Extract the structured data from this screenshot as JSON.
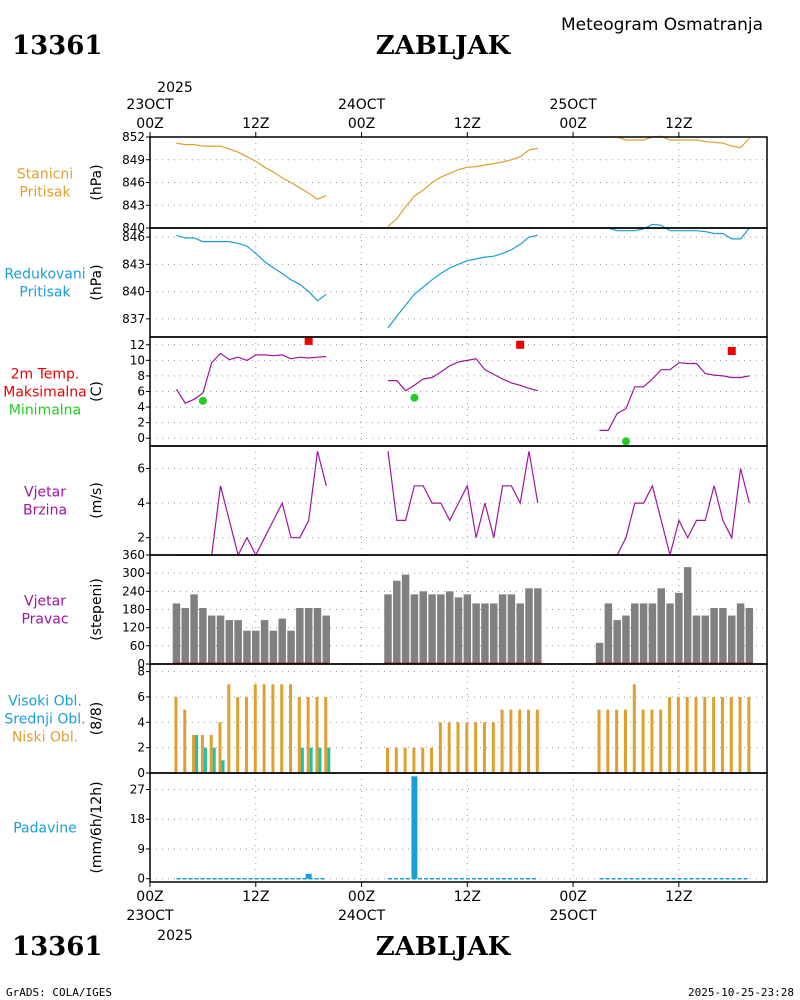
{
  "header": {
    "station_id": "13361",
    "station_name": "ZABLJAK",
    "title": "Meteogram Osmatranja"
  },
  "footer": {
    "station_id": "13361",
    "station_name": "ZABLJAK",
    "credit": "GrADS: COLA/IGES",
    "timestamp": "2025-10-25-23:28"
  },
  "time_axis": {
    "top_year": "2025",
    "bottom_year": "2025",
    "ticks": [
      {
        "h": 0,
        "lines": [
          "00Z",
          "23OCT"
        ]
      },
      {
        "h": 12,
        "lines": [
          "12Z"
        ]
      },
      {
        "h": 24,
        "lines": [
          "00Z",
          "24OCT"
        ]
      },
      {
        "h": 36,
        "lines": [
          "12Z"
        ]
      },
      {
        "h": 48,
        "lines": [
          "00Z",
          "25OCT"
        ]
      },
      {
        "h": 60,
        "lines": [
          "12Z"
        ]
      }
    ]
  },
  "colors": {
    "station_pressure": "#e0a030",
    "reduced_pressure": "#1aa0d8",
    "temperature": "#a0149f",
    "tmax": "#ee0000",
    "tmin": "#22cc22",
    "wind": "#a0149f",
    "wind_dir_bars": "#808080",
    "high_cloud": "#1aa0d8",
    "mid_cloud": "#20c0a0",
    "low_cloud": "#e0a030",
    "precip": "#1aa0d8"
  },
  "panels": {
    "station_pressure": {
      "label1": "Stanicni",
      "label2": "Pritisak",
      "unit": "(hPa)"
    },
    "reduced_pressure": {
      "label1": "Redukovani",
      "label2": "Pritisak",
      "unit": "(hPa)"
    },
    "temperature": {
      "label1": "2m Temp.",
      "label2": "Maksimalna",
      "label3": "Minimalna",
      "unit": "(C)"
    },
    "wind_speed": {
      "label1": "Vjetar",
      "label2": "Brzina",
      "unit": "(m/s)"
    },
    "wind_dir": {
      "label1": "Vjetar",
      "label2": "Pravac",
      "unit": "(stepeni)"
    },
    "clouds": {
      "label1": "Visoki Obl.",
      "label2": "Srednji Obl.",
      "label3": "Niski Obl.",
      "unit": "(8/8)"
    },
    "precip": {
      "label1": "Padavine",
      "unit": "(mm/6h/12h)"
    }
  },
  "chart_data": [
    {
      "type": "line",
      "id": "station_pressure",
      "title": "Stanicni Pritisak",
      "ylabel": "(hPa)",
      "ylim": [
        840,
        852
      ],
      "yticks": [
        840,
        843,
        846,
        849,
        852
      ],
      "series": [
        {
          "name": "d1",
          "x": [
            3,
            4,
            5,
            6,
            7,
            8,
            9,
            10,
            11,
            12,
            13,
            14,
            15,
            16,
            17,
            18,
            19,
            20
          ],
          "y": [
            851.2,
            851.0,
            851.0,
            850.8,
            850.8,
            850.8,
            850.4,
            850.0,
            849.4,
            848.8,
            848.0,
            847.4,
            846.6,
            846.0,
            845.3,
            844.6,
            843.8,
            844.3
          ]
        },
        {
          "name": "d2",
          "x": [
            27,
            28,
            29,
            30,
            31,
            32,
            33,
            34,
            35,
            36,
            37,
            38,
            39,
            40,
            41,
            42,
            43,
            44
          ],
          "y": [
            840.2,
            841.2,
            842.8,
            844.2,
            845.0,
            846.0,
            846.7,
            847.2,
            847.7,
            848.0,
            848.1,
            848.3,
            848.5,
            848.7,
            849.0,
            849.4,
            850.3,
            850.5
          ]
        },
        {
          "name": "d3",
          "x": [
            51,
            52,
            53,
            54,
            55,
            56,
            57,
            58,
            59,
            60,
            61,
            62,
            63,
            64,
            65,
            66,
            67,
            68
          ],
          "y": [
            852.0,
            852.0,
            852.0,
            851.6,
            851.6,
            851.6,
            852.0,
            852.1,
            851.6,
            851.6,
            851.6,
            851.6,
            851.4,
            851.3,
            851.2,
            850.8,
            850.6,
            851.8
          ]
        }
      ]
    },
    {
      "type": "line",
      "id": "reduced_pressure",
      "title": "Redukovani Pritisak",
      "ylabel": "(hPa)",
      "ylim": [
        835,
        847
      ],
      "yticks": [
        837,
        840,
        843,
        846
      ],
      "series": [
        {
          "name": "d1",
          "x": [
            3,
            4,
            5,
            6,
            7,
            8,
            9,
            10,
            11,
            12,
            13,
            14,
            15,
            16,
            17,
            18,
            19,
            20
          ],
          "y": [
            846.2,
            845.9,
            845.9,
            845.5,
            845.5,
            845.5,
            845.5,
            845.3,
            845.0,
            844.2,
            843.3,
            842.6,
            842.0,
            841.3,
            840.8,
            840.0,
            839.0,
            839.7
          ]
        },
        {
          "name": "d2",
          "x": [
            27,
            28,
            29,
            30,
            31,
            32,
            33,
            34,
            35,
            36,
            37,
            38,
            39,
            40,
            41,
            42,
            43,
            44
          ],
          "y": [
            836.0,
            837.3,
            838.5,
            839.7,
            840.5,
            841.3,
            842.0,
            842.6,
            843.0,
            843.4,
            843.6,
            843.8,
            843.9,
            844.2,
            844.6,
            845.2,
            846.0,
            846.2
          ]
        },
        {
          "name": "d3",
          "x": [
            51,
            52,
            53,
            54,
            55,
            56,
            57,
            58,
            59,
            60,
            61,
            62,
            63,
            64,
            65,
            66,
            67,
            68
          ],
          "y": [
            847.0,
            847.0,
            846.7,
            846.7,
            846.7,
            846.9,
            847.4,
            847.3,
            846.7,
            846.7,
            846.7,
            846.7,
            846.6,
            846.4,
            846.4,
            845.8,
            845.8,
            847.0
          ]
        }
      ]
    },
    {
      "type": "line",
      "id": "temperature",
      "title": "2m Temp. Maksimalna Minimalna",
      "ylabel": "(C)",
      "ylim": [
        -1,
        13
      ],
      "yticks": [
        0,
        2,
        4,
        6,
        8,
        10,
        12
      ],
      "series": [
        {
          "name": "d1",
          "x": [
            3,
            4,
            5,
            6,
            7,
            8,
            9,
            10,
            11,
            12,
            13,
            14,
            15,
            16,
            17,
            18,
            19,
            20
          ],
          "y": [
            6.3,
            4.5,
            5.0,
            5.8,
            9.7,
            10.9,
            10.1,
            10.4,
            10.0,
            10.7,
            10.7,
            10.6,
            10.7,
            10.2,
            10.4,
            10.3,
            10.4,
            10.5
          ]
        },
        {
          "name": "d2",
          "x": [
            27,
            28,
            29,
            30,
            31,
            32,
            33,
            34,
            35,
            36,
            37,
            38,
            39,
            40,
            41,
            42,
            43,
            44
          ],
          "y": [
            7.4,
            7.4,
            6.1,
            6.8,
            7.6,
            7.8,
            8.5,
            9.3,
            9.8,
            10.0,
            10.2,
            8.8,
            8.2,
            7.6,
            7.1,
            6.8,
            6.4,
            6.1
          ]
        },
        {
          "name": "d3",
          "x": [
            51,
            52,
            53,
            54,
            55,
            56,
            57,
            58,
            59,
            60,
            61,
            62,
            63,
            64,
            65,
            66,
            67,
            68
          ],
          "y": [
            1.0,
            1.0,
            3.2,
            3.8,
            6.6,
            6.6,
            7.6,
            8.8,
            8.8,
            9.7,
            9.6,
            9.6,
            8.3,
            8.1,
            8.0,
            7.8,
            7.8,
            8.0
          ]
        }
      ],
      "tmax": [
        {
          "x": 18,
          "y": 12.5
        },
        {
          "x": 42,
          "y": 12.0
        },
        {
          "x": 66,
          "y": 11.2
        }
      ],
      "tmin": [
        {
          "x": 6,
          "y": 4.8
        },
        {
          "x": 30,
          "y": 5.2
        },
        {
          "x": 54,
          "y": -0.4
        }
      ]
    },
    {
      "type": "line",
      "id": "wind_speed",
      "title": "Vjetar Brzina",
      "ylabel": "(m/s)",
      "ylim": [
        1,
        7.3
      ],
      "yticks": [
        2,
        4,
        6
      ],
      "series": [
        {
          "name": "d1",
          "x": [
            3,
            4,
            5,
            6,
            7,
            8,
            9,
            10,
            11,
            12,
            13,
            14,
            15,
            16,
            17,
            18,
            19,
            20
          ],
          "y": [
            1,
            1,
            1,
            1,
            1,
            5,
            3,
            1,
            2,
            1,
            2,
            3,
            4,
            2,
            2,
            3,
            7,
            5
          ]
        },
        {
          "name": "d2",
          "x": [
            27,
            28,
            29,
            30,
            31,
            32,
            33,
            34,
            35,
            36,
            37,
            38,
            39,
            40,
            41,
            42,
            43,
            44
          ],
          "y": [
            7,
            3,
            3,
            5,
            5,
            4,
            4,
            3,
            4,
            5,
            2,
            4,
            2,
            5,
            5,
            4,
            7,
            4
          ]
        },
        {
          "name": "d3",
          "x": [
            51,
            52,
            53,
            54,
            55,
            56,
            57,
            58,
            59,
            60,
            61,
            62,
            63,
            64,
            65,
            66,
            67,
            68
          ],
          "y": [
            1,
            1,
            1,
            2,
            4,
            4,
            5,
            3,
            1,
            3,
            2,
            3,
            3,
            5,
            3,
            2,
            6,
            4
          ]
        }
      ]
    },
    {
      "type": "bar",
      "id": "wind_dir",
      "title": "Vjetar Pravac",
      "ylabel": "(stepeni)",
      "ylim": [
        0,
        360
      ],
      "yticks": [
        0,
        60,
        120,
        180,
        240,
        300,
        360
      ],
      "series": [
        {
          "name": "d1",
          "x": [
            3,
            4,
            5,
            6,
            7,
            8,
            9,
            10,
            11,
            12,
            13,
            14,
            15,
            16,
            17,
            18,
            19,
            20
          ],
          "y": [
            200,
            185,
            230,
            185,
            160,
            160,
            145,
            145,
            110,
            110,
            145,
            110,
            150,
            110,
            185,
            185,
            185,
            160
          ]
        },
        {
          "name": "d2",
          "x": [
            27,
            28,
            29,
            30,
            31,
            32,
            33,
            34,
            35,
            36,
            37,
            38,
            39,
            40,
            41,
            42,
            43,
            44
          ],
          "y": [
            230,
            275,
            295,
            230,
            240,
            230,
            230,
            240,
            220,
            230,
            200,
            200,
            200,
            230,
            230,
            200,
            250,
            250
          ]
        },
        {
          "name": "d3",
          "x": [
            51,
            52,
            53,
            54,
            55,
            56,
            57,
            58,
            59,
            60,
            61,
            62,
            63,
            64,
            65,
            66,
            67,
            68
          ],
          "y": [
            70,
            200,
            145,
            160,
            200,
            200,
            200,
            250,
            200,
            235,
            320,
            160,
            160,
            185,
            185,
            160,
            200,
            185
          ]
        }
      ]
    },
    {
      "type": "bar",
      "id": "clouds",
      "title": "Visoki Obl. Srednji Obl. Niski Obl.",
      "ylabel": "(8/8)",
      "ylim": [
        0,
        8.6
      ],
      "yticks": [
        0,
        2,
        4,
        6,
        8
      ],
      "series": [
        {
          "name": "Niski Obl.",
          "x": [
            3,
            4,
            5,
            6,
            7,
            8,
            9,
            10,
            11,
            12,
            13,
            14,
            15,
            16,
            17,
            18,
            19,
            20,
            27,
            28,
            29,
            30,
            31,
            32,
            33,
            34,
            35,
            36,
            37,
            38,
            39,
            40,
            41,
            42,
            43,
            44,
            51,
            52,
            53,
            54,
            55,
            56,
            57,
            58,
            59,
            60,
            61,
            62,
            63,
            64,
            65,
            66,
            67,
            68
          ],
          "y": [
            6,
            5,
            3,
            3,
            3,
            4,
            7,
            6,
            6,
            7,
            7,
            7,
            7,
            7,
            6,
            6,
            6,
            6,
            2,
            2,
            2,
            2,
            2,
            2,
            4,
            4,
            4,
            4,
            4,
            4,
            4,
            5,
            5,
            5,
            5,
            5,
            5,
            5,
            5,
            5,
            7,
            5,
            5,
            5,
            6,
            6,
            6,
            6,
            6,
            6,
            6,
            6,
            6,
            6
          ]
        },
        {
          "name": "Srednji Obl.",
          "x": [
            3,
            4,
            5,
            6,
            7,
            8,
            9,
            10,
            11,
            12,
            13,
            14,
            15,
            16,
            17,
            18,
            19,
            20,
            27,
            28,
            29,
            30,
            31,
            32,
            33,
            34,
            35,
            36,
            37,
            38,
            39,
            40,
            41,
            42,
            43,
            44,
            51,
            52,
            53,
            54,
            55,
            56,
            57,
            58,
            59,
            60,
            61,
            62,
            63,
            64,
            65,
            66,
            67,
            68
          ],
          "y": [
            0,
            0,
            3,
            2,
            2,
            1,
            0,
            0,
            0,
            0,
            0,
            0,
            0,
            0,
            2,
            2,
            2,
            2,
            0,
            0,
            0,
            0,
            0,
            0,
            0,
            0,
            0,
            0,
            0,
            0,
            0,
            0,
            0,
            0,
            0,
            0,
            0,
            0,
            0,
            0,
            0,
            0,
            0,
            0,
            0,
            0,
            0,
            0,
            0,
            0,
            0,
            0,
            0,
            0
          ]
        },
        {
          "name": "Visoki Obl.",
          "x": [],
          "y": []
        }
      ]
    },
    {
      "type": "bar",
      "id": "precip",
      "title": "Padavine",
      "ylabel": "(mm/6h/12h)",
      "ylim": [
        -1,
        32
      ],
      "yticks": [
        0,
        9,
        18,
        27
      ],
      "series": [
        {
          "name": "precip",
          "x": [
            18,
            30
          ],
          "y": [
            1.5,
            31
          ]
        }
      ]
    }
  ]
}
